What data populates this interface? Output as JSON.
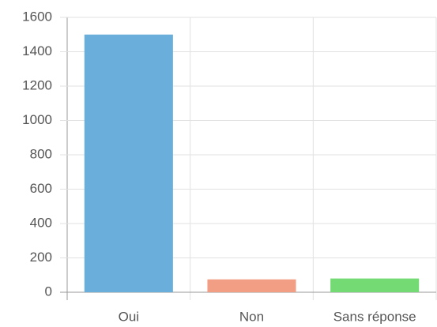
{
  "chart_data": {
    "type": "bar",
    "categories": [
      "Oui",
      "Non",
      "Sans réponse"
    ],
    "values": [
      1500,
      75,
      80
    ],
    "colors": [
      "#6aafdc",
      "#f29e85",
      "#74db74"
    ],
    "ylim": [
      0,
      1600
    ],
    "yticks": [
      0,
      200,
      400,
      600,
      800,
      1000,
      1200,
      1400,
      1600
    ],
    "grid": true
  }
}
